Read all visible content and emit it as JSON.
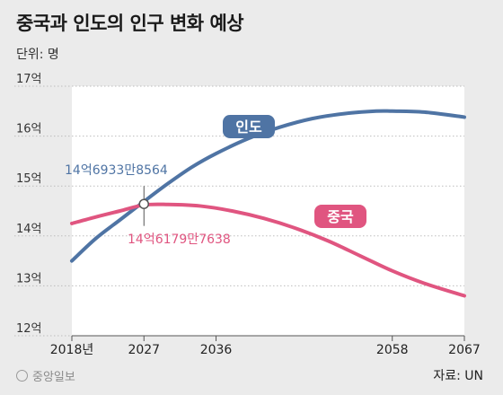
{
  "header": {
    "title": "중국과 인도의 인구 변화 예상",
    "unit": "단위: 명"
  },
  "footer": {
    "credit": "중앙일보",
    "source": "자료: UN"
  },
  "colors": {
    "india": "#4f74a4",
    "china": "#e05580",
    "grid": "#bdbdbd",
    "plot_bg": "#ffffff"
  },
  "chart_data": {
    "type": "line",
    "title": "중국과 인도의 인구 변화 예상",
    "ylabel": "단위: 명",
    "ylim": [
      12,
      17
    ],
    "y_ticks": [
      "12억",
      "13억",
      "14억",
      "15억",
      "16억",
      "17억"
    ],
    "x_ticks": [
      "2018년",
      "2027",
      "2036",
      "2058",
      "2067"
    ],
    "x_tick_years": [
      2018,
      2027,
      2036,
      2058,
      2067
    ],
    "xlim": [
      2018,
      2067
    ],
    "series": [
      {
        "name": "인도",
        "color": "#4f74a4",
        "x": [
          2018,
          2021,
          2024,
          2027,
          2030,
          2033,
          2036,
          2040,
          2044,
          2048,
          2052,
          2056,
          2058,
          2062,
          2067
        ],
        "values": [
          13.5,
          13.95,
          14.32,
          14.69,
          15.05,
          15.38,
          15.65,
          15.95,
          16.18,
          16.35,
          16.45,
          16.5,
          16.5,
          16.48,
          16.38
        ]
      },
      {
        "name": "중국",
        "color": "#e05580",
        "x": [
          2018,
          2021,
          2024,
          2027,
          2030,
          2034,
          2038,
          2042,
          2046,
          2050,
          2054,
          2058,
          2062,
          2067
        ],
        "values": [
          14.25,
          14.38,
          14.5,
          14.62,
          14.63,
          14.6,
          14.5,
          14.35,
          14.15,
          13.9,
          13.6,
          13.3,
          13.05,
          12.8
        ]
      }
    ],
    "annotations": {
      "crossover_year": 2027,
      "india_label": "14억6933만8564",
      "china_label": "14억6179만7638"
    }
  }
}
